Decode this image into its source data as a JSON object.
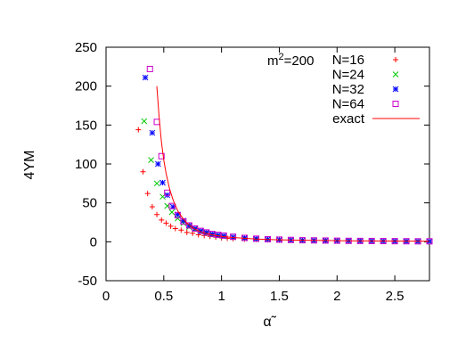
{
  "chart_data": {
    "type": "scatter",
    "annotation": {
      "base": "m",
      "sup": "2",
      "rest": "=200"
    },
    "xlabel": "α̃",
    "ylabel": "4YM",
    "xlim": [
      0,
      2.8
    ],
    "ylim": [
      -50,
      250
    ],
    "xticks": [
      0,
      0.5,
      1,
      1.5,
      2,
      2.5
    ],
    "xtick_labels": [
      "0",
      "0.5",
      "1",
      "1.5",
      "2",
      "2.5"
    ],
    "yticks": [
      -50,
      0,
      50,
      100,
      150,
      200,
      250
    ],
    "ytick_labels": [
      "-50",
      "0",
      "50",
      "100",
      "150",
      "200",
      "250"
    ],
    "grid": false,
    "legend": "top-right",
    "series": [
      {
        "name": "N=16",
        "color": "#ff0000",
        "marker": "plus",
        "points": [
          [
            0.28,
            144
          ],
          [
            0.32,
            90
          ],
          [
            0.36,
            62
          ],
          [
            0.4,
            45
          ],
          [
            0.44,
            35
          ],
          [
            0.48,
            28
          ],
          [
            0.52,
            24
          ],
          [
            0.56,
            20
          ],
          [
            0.6,
            17
          ],
          [
            0.65,
            15
          ],
          [
            0.7,
            12
          ],
          [
            0.75,
            11
          ],
          [
            0.8,
            9
          ],
          [
            0.85,
            8
          ],
          [
            0.9,
            7
          ],
          [
            0.95,
            6
          ],
          [
            1.0,
            5
          ],
          [
            1.05,
            4.5
          ],
          [
            1.1,
            4
          ],
          [
            1.2,
            3.5
          ],
          [
            1.3,
            3
          ],
          [
            1.4,
            2.5
          ],
          [
            1.5,
            2
          ],
          [
            1.6,
            2
          ],
          [
            1.7,
            1.5
          ],
          [
            1.8,
            1.5
          ],
          [
            1.9,
            1.2
          ],
          [
            2.0,
            1
          ],
          [
            2.1,
            1
          ],
          [
            2.2,
            1
          ],
          [
            2.3,
            0.8
          ],
          [
            2.4,
            0.8
          ],
          [
            2.5,
            0.7
          ],
          [
            2.6,
            0.6
          ],
          [
            2.7,
            0.5
          ],
          [
            2.8,
            0.5
          ]
        ]
      },
      {
        "name": "N=24",
        "color": "#00cc00",
        "marker": "cross",
        "points": [
          [
            0.33,
            155
          ],
          [
            0.39,
            105
          ],
          [
            0.44,
            75
          ],
          [
            0.49,
            58
          ],
          [
            0.53,
            46
          ],
          [
            0.57,
            38
          ],
          [
            0.62,
            30
          ],
          [
            0.67,
            24
          ],
          [
            0.72,
            19
          ],
          [
            0.77,
            16
          ],
          [
            0.82,
            13
          ],
          [
            0.87,
            11
          ],
          [
            0.92,
            9
          ],
          [
            0.97,
            8
          ],
          [
            1.02,
            7
          ],
          [
            1.1,
            6
          ],
          [
            1.2,
            4.5
          ],
          [
            1.3,
            3.5
          ],
          [
            1.4,
            3
          ],
          [
            1.5,
            2.5
          ],
          [
            1.6,
            2
          ],
          [
            1.7,
            1.8
          ],
          [
            1.8,
            1.6
          ],
          [
            1.9,
            1.4
          ],
          [
            2.0,
            1.2
          ],
          [
            2.1,
            1.1
          ],
          [
            2.2,
            1
          ],
          [
            2.3,
            0.9
          ],
          [
            2.4,
            0.8
          ],
          [
            2.5,
            0.7
          ],
          [
            2.6,
            0.6
          ],
          [
            2.7,
            0.5
          ],
          [
            2.8,
            0.5
          ]
        ]
      },
      {
        "name": "N=32",
        "color": "#0000ff",
        "marker": "star",
        "points": [
          [
            0.34,
            211
          ],
          [
            0.4,
            140
          ],
          [
            0.45,
            100
          ],
          [
            0.49,
            76
          ],
          [
            0.53,
            60
          ],
          [
            0.58,
            45
          ],
          [
            0.62,
            35
          ],
          [
            0.67,
            27
          ],
          [
            0.72,
            21
          ],
          [
            0.77,
            17
          ],
          [
            0.82,
            14
          ],
          [
            0.87,
            12
          ],
          [
            0.92,
            10
          ],
          [
            0.97,
            8.5
          ],
          [
            1.02,
            7.5
          ],
          [
            1.1,
            6
          ],
          [
            1.2,
            5
          ],
          [
            1.3,
            4
          ],
          [
            1.4,
            3.2
          ],
          [
            1.5,
            2.6
          ],
          [
            1.6,
            2.2
          ],
          [
            1.7,
            1.9
          ],
          [
            1.8,
            1.7
          ],
          [
            1.9,
            1.5
          ],
          [
            2.0,
            1.3
          ],
          [
            2.1,
            1.2
          ],
          [
            2.2,
            1.1
          ],
          [
            2.3,
            1
          ],
          [
            2.4,
            0.9
          ],
          [
            2.5,
            0.8
          ],
          [
            2.6,
            0.7
          ],
          [
            2.7,
            0.6
          ],
          [
            2.8,
            0.6
          ]
        ]
      },
      {
        "name": "N=64",
        "color": "#cc00cc",
        "marker": "square",
        "points": [
          [
            0.38,
            222
          ],
          [
            0.44,
            154
          ],
          [
            0.48,
            110
          ],
          [
            0.53,
            63
          ],
          [
            0.57,
            46
          ],
          [
            0.62,
            34
          ],
          [
            0.67,
            26
          ],
          [
            0.72,
            21
          ],
          [
            0.77,
            17
          ],
          [
            0.82,
            14
          ],
          [
            0.87,
            12
          ],
          [
            0.92,
            10
          ],
          [
            0.97,
            9
          ],
          [
            1.02,
            8
          ],
          [
            1.1,
            6.5
          ],
          [
            1.2,
            5
          ],
          [
            1.3,
            4
          ],
          [
            1.4,
            3.3
          ],
          [
            1.5,
            2.8
          ],
          [
            1.6,
            2.4
          ],
          [
            1.7,
            2
          ],
          [
            1.8,
            1.8
          ],
          [
            1.9,
            1.6
          ],
          [
            2.0,
            1.4
          ],
          [
            2.1,
            1.2
          ],
          [
            2.2,
            1.1
          ],
          [
            2.3,
            1
          ],
          [
            2.4,
            0.9
          ],
          [
            2.5,
            0.8
          ],
          [
            2.6,
            0.7
          ],
          [
            2.7,
            0.6
          ],
          [
            2.8,
            0.6
          ]
        ]
      },
      {
        "name": "exact",
        "color": "#ff0000",
        "marker": "line",
        "points": [
          [
            0.44,
            200
          ],
          [
            0.46,
            160
          ],
          [
            0.48,
            128
          ],
          [
            0.5,
            105
          ],
          [
            0.52,
            88
          ],
          [
            0.55,
            68
          ],
          [
            0.58,
            54
          ],
          [
            0.62,
            40
          ],
          [
            0.66,
            31
          ],
          [
            0.7,
            24
          ],
          [
            0.75,
            18
          ],
          [
            0.8,
            14
          ],
          [
            0.85,
            11.5
          ],
          [
            0.9,
            9.5
          ],
          [
            0.95,
            8
          ],
          [
            1.0,
            7
          ],
          [
            1.1,
            5.5
          ],
          [
            1.2,
            4.5
          ],
          [
            1.3,
            3.6
          ],
          [
            1.4,
            3
          ],
          [
            1.5,
            2.6
          ],
          [
            1.7,
            2
          ],
          [
            1.9,
            1.6
          ],
          [
            2.1,
            1.3
          ],
          [
            2.3,
            1.1
          ],
          [
            2.5,
            0.9
          ],
          [
            2.8,
            0.7
          ]
        ]
      }
    ]
  }
}
